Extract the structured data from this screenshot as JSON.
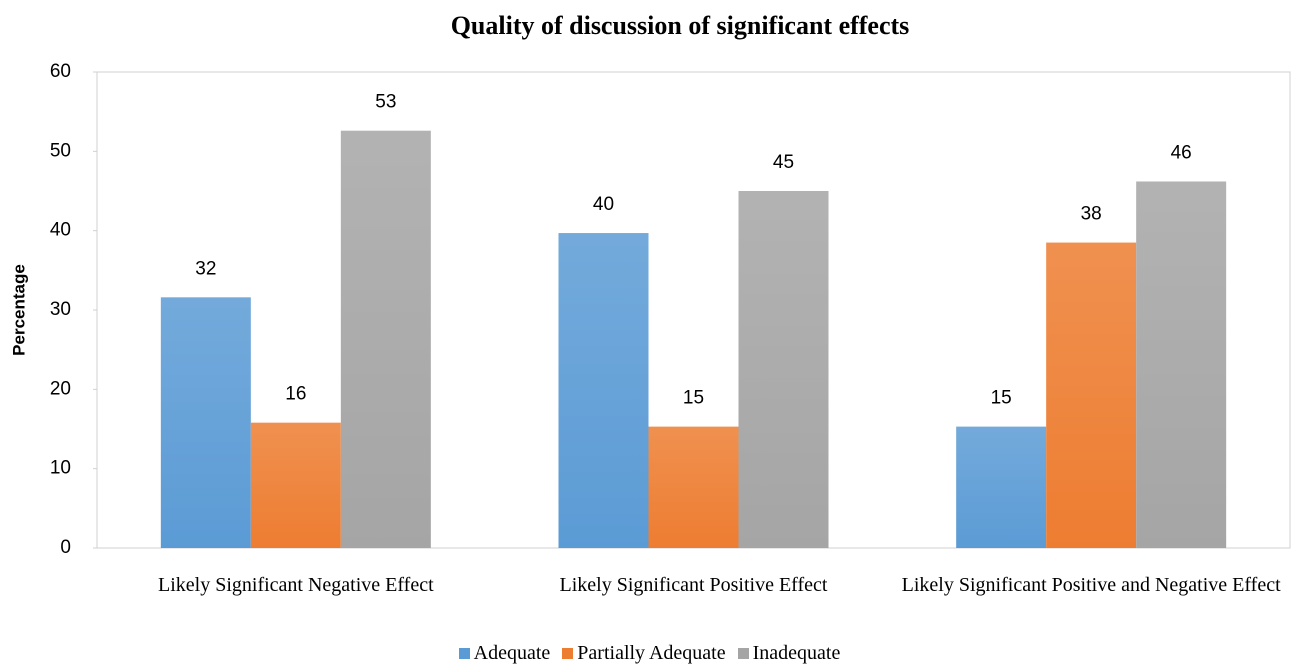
{
  "chart_data": {
    "type": "bar",
    "title": "Quality of discussion of significant effects",
    "y_label": "Percentage",
    "categories": [
      "Likely Significant Negative Effect",
      "Likely Significant Positive Effect",
      "Likely Significant Positive and Negative Effect"
    ],
    "series": [
      {
        "name": "Adequate",
        "color": "#5b9bd5",
        "values": [
          31.6,
          39.7,
          15.3
        ],
        "value_labels": [
          "32",
          "40",
          "15"
        ]
      },
      {
        "name": "Partially Adequate",
        "color": "#ed7d31",
        "values": [
          15.8,
          15.3,
          38.5
        ],
        "value_labels": [
          "16",
          "15",
          "38"
        ]
      },
      {
        "name": "Inadequate",
        "color": "#a5a5a5",
        "values": [
          52.6,
          45.0,
          46.2
        ],
        "value_labels": [
          "53",
          "45",
          "46"
        ]
      }
    ],
    "ylim": [
      0,
      60
    ],
    "yticks": [
      0,
      10,
      20,
      30,
      40,
      50,
      60
    ],
    "grid": false,
    "legend": "bottom"
  }
}
